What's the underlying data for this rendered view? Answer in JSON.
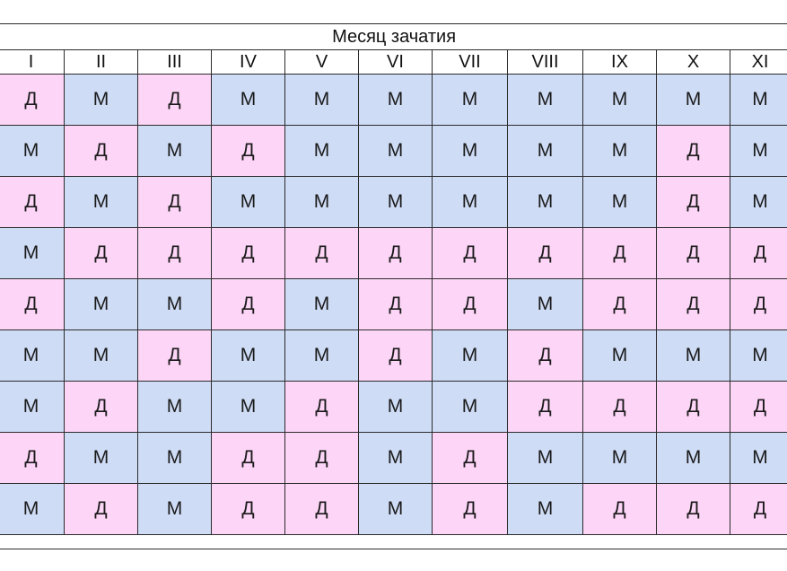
{
  "table": {
    "title": "Месяц зачатия",
    "columns": [
      "I",
      "II",
      "III",
      "IV",
      "V",
      "VI",
      "VII",
      "VIII",
      "IX",
      "X",
      "XI"
    ],
    "rows": [
      [
        "Д",
        "М",
        "Д",
        "М",
        "М",
        "М",
        "М",
        "М",
        "М",
        "М",
        "М"
      ],
      [
        "М",
        "Д",
        "М",
        "Д",
        "М",
        "М",
        "М",
        "М",
        "М",
        "Д",
        "М"
      ],
      [
        "Д",
        "М",
        "Д",
        "М",
        "М",
        "М",
        "М",
        "М",
        "М",
        "Д",
        "М"
      ],
      [
        "М",
        "Д",
        "Д",
        "Д",
        "Д",
        "Д",
        "Д",
        "Д",
        "Д",
        "Д",
        "Д"
      ],
      [
        "Д",
        "М",
        "М",
        "Д",
        "М",
        "Д",
        "Д",
        "М",
        "Д",
        "Д",
        "Д"
      ],
      [
        "М",
        "М",
        "Д",
        "М",
        "М",
        "Д",
        "М",
        "Д",
        "М",
        "М",
        "М"
      ],
      [
        "М",
        "Д",
        "М",
        "М",
        "Д",
        "М",
        "М",
        "Д",
        "Д",
        "Д",
        "Д"
      ],
      [
        "Д",
        "М",
        "М",
        "Д",
        "Д",
        "М",
        "Д",
        "М",
        "М",
        "М",
        "М"
      ],
      [
        "М",
        "Д",
        "М",
        "Д",
        "Д",
        "М",
        "Д",
        "М",
        "Д",
        "Д",
        "Д"
      ]
    ]
  },
  "colors": {
    "girl_cell": "#fdd5f7",
    "boy_cell": "#cfdcf6",
    "grid_line": "#2b2b2b"
  }
}
